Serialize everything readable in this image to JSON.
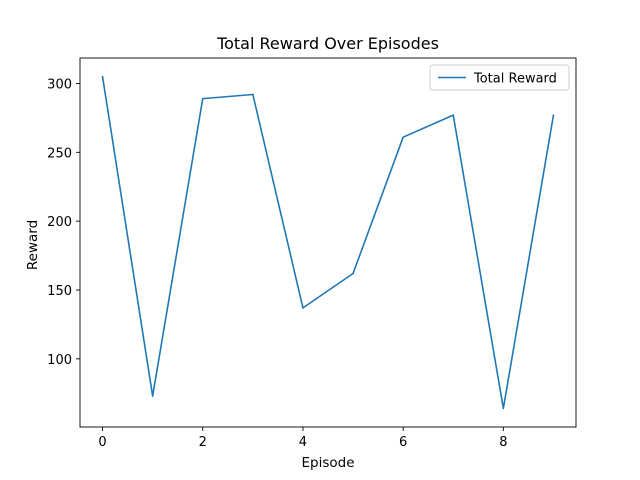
{
  "chart_data": {
    "type": "line",
    "title": "Total Reward Over Episodes",
    "xlabel": "Episode",
    "ylabel": "Reward",
    "x": [
      0,
      1,
      2,
      3,
      4,
      5,
      6,
      7,
      8,
      9
    ],
    "series": [
      {
        "name": "Total Reward",
        "color": "#1f77b4",
        "values": [
          305,
          73,
          289,
          292,
          137,
          162,
          261,
          277,
          64,
          277
        ]
      }
    ],
    "xlim": [
      -0.45,
      9.45
    ],
    "ylim": [
      50.5,
      318.5
    ],
    "xticks": [
      0,
      2,
      4,
      6,
      8
    ],
    "yticks": [
      100,
      150,
      200,
      250,
      300
    ],
    "grid": false,
    "legend_position": "top-right"
  }
}
